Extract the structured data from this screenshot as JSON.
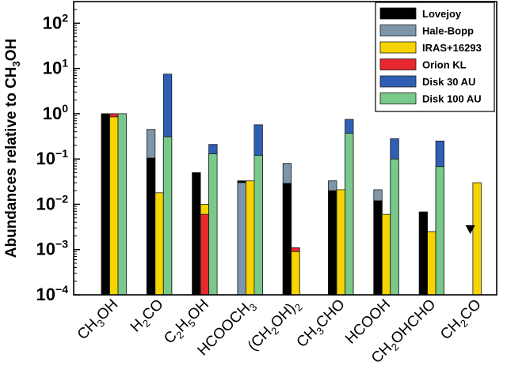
{
  "chart_data": {
    "type": "bar",
    "scale": "log",
    "ylabel": "Abundances relative to CH3OH",
    "ylabel_parts": {
      "main": "Abundances relative to CH",
      "sub": "3",
      "tail": "OH"
    },
    "ylim": [
      0.0001,
      300
    ],
    "yticks": [
      {
        "value": 0.0001,
        "base": "10",
        "exp": "−4"
      },
      {
        "value": 0.001,
        "base": "10",
        "exp": "−3"
      },
      {
        "value": 0.01,
        "base": "10",
        "exp": "−2"
      },
      {
        "value": 0.1,
        "base": "10",
        "exp": "−1"
      },
      {
        "value": 1,
        "base": "10",
        "exp": "0"
      },
      {
        "value": 10,
        "base": "10",
        "exp": "1"
      },
      {
        "value": 100,
        "base": "10",
        "exp": "2"
      }
    ],
    "grid": false,
    "legend_position": "top-right",
    "categories": [
      {
        "name": "CH3OH",
        "parts": [
          [
            "CH",
            ""
          ],
          [
            "3",
            "sub"
          ],
          [
            "OH",
            ""
          ]
        ]
      },
      {
        "name": "H2CO",
        "parts": [
          [
            "H",
            ""
          ],
          [
            "2",
            "sub"
          ],
          [
            "CO",
            ""
          ]
        ]
      },
      {
        "name": "C2H5OH",
        "parts": [
          [
            "C",
            ""
          ],
          [
            "2",
            "sub"
          ],
          [
            "H",
            ""
          ],
          [
            "5",
            "sub"
          ],
          [
            "OH",
            ""
          ]
        ]
      },
      {
        "name": "HCOOCH3",
        "parts": [
          [
            "HCOOCH",
            ""
          ],
          [
            "3",
            "sub"
          ]
        ]
      },
      {
        "name": "(CH2OH)2",
        "parts": [
          [
            "(CH",
            ""
          ],
          [
            "2",
            "sub"
          ],
          [
            "OH)",
            ""
          ],
          [
            "2",
            "sub"
          ]
        ]
      },
      {
        "name": "CH3CHO",
        "parts": [
          [
            "CH",
            ""
          ],
          [
            "3",
            "sub"
          ],
          [
            "CHO",
            ""
          ]
        ]
      },
      {
        "name": "HCOOH",
        "parts": [
          [
            "HCOOH",
            ""
          ]
        ]
      },
      {
        "name": "CH2OHCHO",
        "parts": [
          [
            "CH",
            ""
          ],
          [
            "2",
            "sub"
          ],
          [
            "OHCHO",
            ""
          ]
        ]
      },
      {
        "name": "CH2CO",
        "parts": [
          [
            "CH",
            ""
          ],
          [
            "2",
            "sub"
          ],
          [
            "CO",
            ""
          ]
        ]
      }
    ],
    "series": [
      {
        "name": "Lovejoy",
        "color": "#000000"
      },
      {
        "name": "Hale-Bopp",
        "color": "#7e96aa"
      },
      {
        "name": "IRAS+16293",
        "color": "#f5d400"
      },
      {
        "name": "Orion KL",
        "color": "#e8282c"
      },
      {
        "name": "Disk 30 AU",
        "color": "#2f5fb5"
      },
      {
        "name": "Disk 100 AU",
        "color": "#78c98a"
      }
    ],
    "bars": [
      {
        "category": 0,
        "slot": 0,
        "segments": [
          {
            "series": "Orion KL",
            "value": 1.0
          },
          {
            "series": "Lovejoy",
            "value": 1.0
          }
        ]
      },
      {
        "category": 0,
        "slot": 1,
        "segments": [
          {
            "series": "Orion KL",
            "value": 1.0
          },
          {
            "series": "IRAS+16293",
            "value": 0.85
          }
        ]
      },
      {
        "category": 0,
        "slot": 2,
        "segments": [
          {
            "series": "Disk 100 AU",
            "value": 1.0
          }
        ]
      },
      {
        "category": 1,
        "slot": 0,
        "segments": [
          {
            "series": "Hale-Bopp",
            "value": 0.45
          },
          {
            "series": "Lovejoy",
            "value": 0.105
          }
        ]
      },
      {
        "category": 1,
        "slot": 1,
        "segments": [
          {
            "series": "IRAS+16293",
            "value": 0.018
          }
        ]
      },
      {
        "category": 1,
        "slot": 2,
        "segments": [
          {
            "series": "Disk 30 AU",
            "value": 7.5
          },
          {
            "series": "Disk 100 AU",
            "value": 0.31
          }
        ]
      },
      {
        "category": 2,
        "slot": 0,
        "segments": [
          {
            "series": "Lovejoy",
            "value": 0.05
          }
        ]
      },
      {
        "category": 2,
        "slot": 1,
        "segments": [
          {
            "series": "IRAS+16293",
            "value": 0.01
          },
          {
            "series": "Orion KL",
            "value": 0.006
          }
        ]
      },
      {
        "category": 2,
        "slot": 2,
        "segments": [
          {
            "series": "Disk 30 AU",
            "value": 0.21
          },
          {
            "series": "Disk 100 AU",
            "value": 0.13
          }
        ]
      },
      {
        "category": 3,
        "slot": 0,
        "segments": [
          {
            "series": "Lovejoy",
            "value": 0.033
          },
          {
            "series": "Hale-Bopp",
            "value": 0.03
          }
        ]
      },
      {
        "category": 3,
        "slot": 1,
        "segments": [
          {
            "series": "IRAS+16293",
            "value": 0.033
          }
        ]
      },
      {
        "category": 3,
        "slot": 2,
        "segments": [
          {
            "series": "Disk 30 AU",
            "value": 0.57
          },
          {
            "series": "Disk 100 AU",
            "value": 0.12
          }
        ]
      },
      {
        "category": 4,
        "slot": 0,
        "segments": [
          {
            "series": "Hale-Bopp",
            "value": 0.08
          },
          {
            "series": "Lovejoy",
            "value": 0.029
          }
        ]
      },
      {
        "category": 4,
        "slot": 1,
        "segments": [
          {
            "series": "Orion KL",
            "value": 0.0011
          },
          {
            "series": "IRAS+16293",
            "value": 0.0009
          }
        ]
      },
      {
        "category": 5,
        "slot": 0,
        "segments": [
          {
            "series": "Hale-Bopp",
            "value": 0.033
          },
          {
            "series": "Lovejoy",
            "value": 0.02
          }
        ]
      },
      {
        "category": 5,
        "slot": 1,
        "segments": [
          {
            "series": "IRAS+16293",
            "value": 0.021
          }
        ]
      },
      {
        "category": 5,
        "slot": 2,
        "segments": [
          {
            "series": "Disk 30 AU",
            "value": 0.75
          },
          {
            "series": "Disk 100 AU",
            "value": 0.37
          }
        ]
      },
      {
        "category": 6,
        "slot": 0,
        "segments": [
          {
            "series": "Hale-Bopp",
            "value": 0.021
          },
          {
            "series": "Lovejoy",
            "value": 0.012
          }
        ]
      },
      {
        "category": 6,
        "slot": 1,
        "segments": [
          {
            "series": "IRAS+16293",
            "value": 0.006
          }
        ]
      },
      {
        "category": 6,
        "slot": 2,
        "segments": [
          {
            "series": "Disk 30 AU",
            "value": 0.28
          },
          {
            "series": "Disk 100 AU",
            "value": 0.1
          }
        ]
      },
      {
        "category": 7,
        "slot": 0,
        "segments": [
          {
            "series": "Lovejoy",
            "value": 0.0068
          }
        ]
      },
      {
        "category": 7,
        "slot": 1,
        "segments": [
          {
            "series": "IRAS+16293",
            "value": 0.0025
          }
        ]
      },
      {
        "category": 7,
        "slot": 2,
        "segments": [
          {
            "series": "Disk 30 AU",
            "value": 0.25
          },
          {
            "series": "Disk 100 AU",
            "value": 0.068
          }
        ]
      },
      {
        "category": 8,
        "slot": 1,
        "segments": [
          {
            "series": "IRAS+16293",
            "value": 0.03
          }
        ]
      }
    ],
    "markers": [
      {
        "category": 8,
        "slot": 0,
        "series": "Lovejoy",
        "value": 0.0027,
        "kind": "upper-limit"
      }
    ]
  }
}
